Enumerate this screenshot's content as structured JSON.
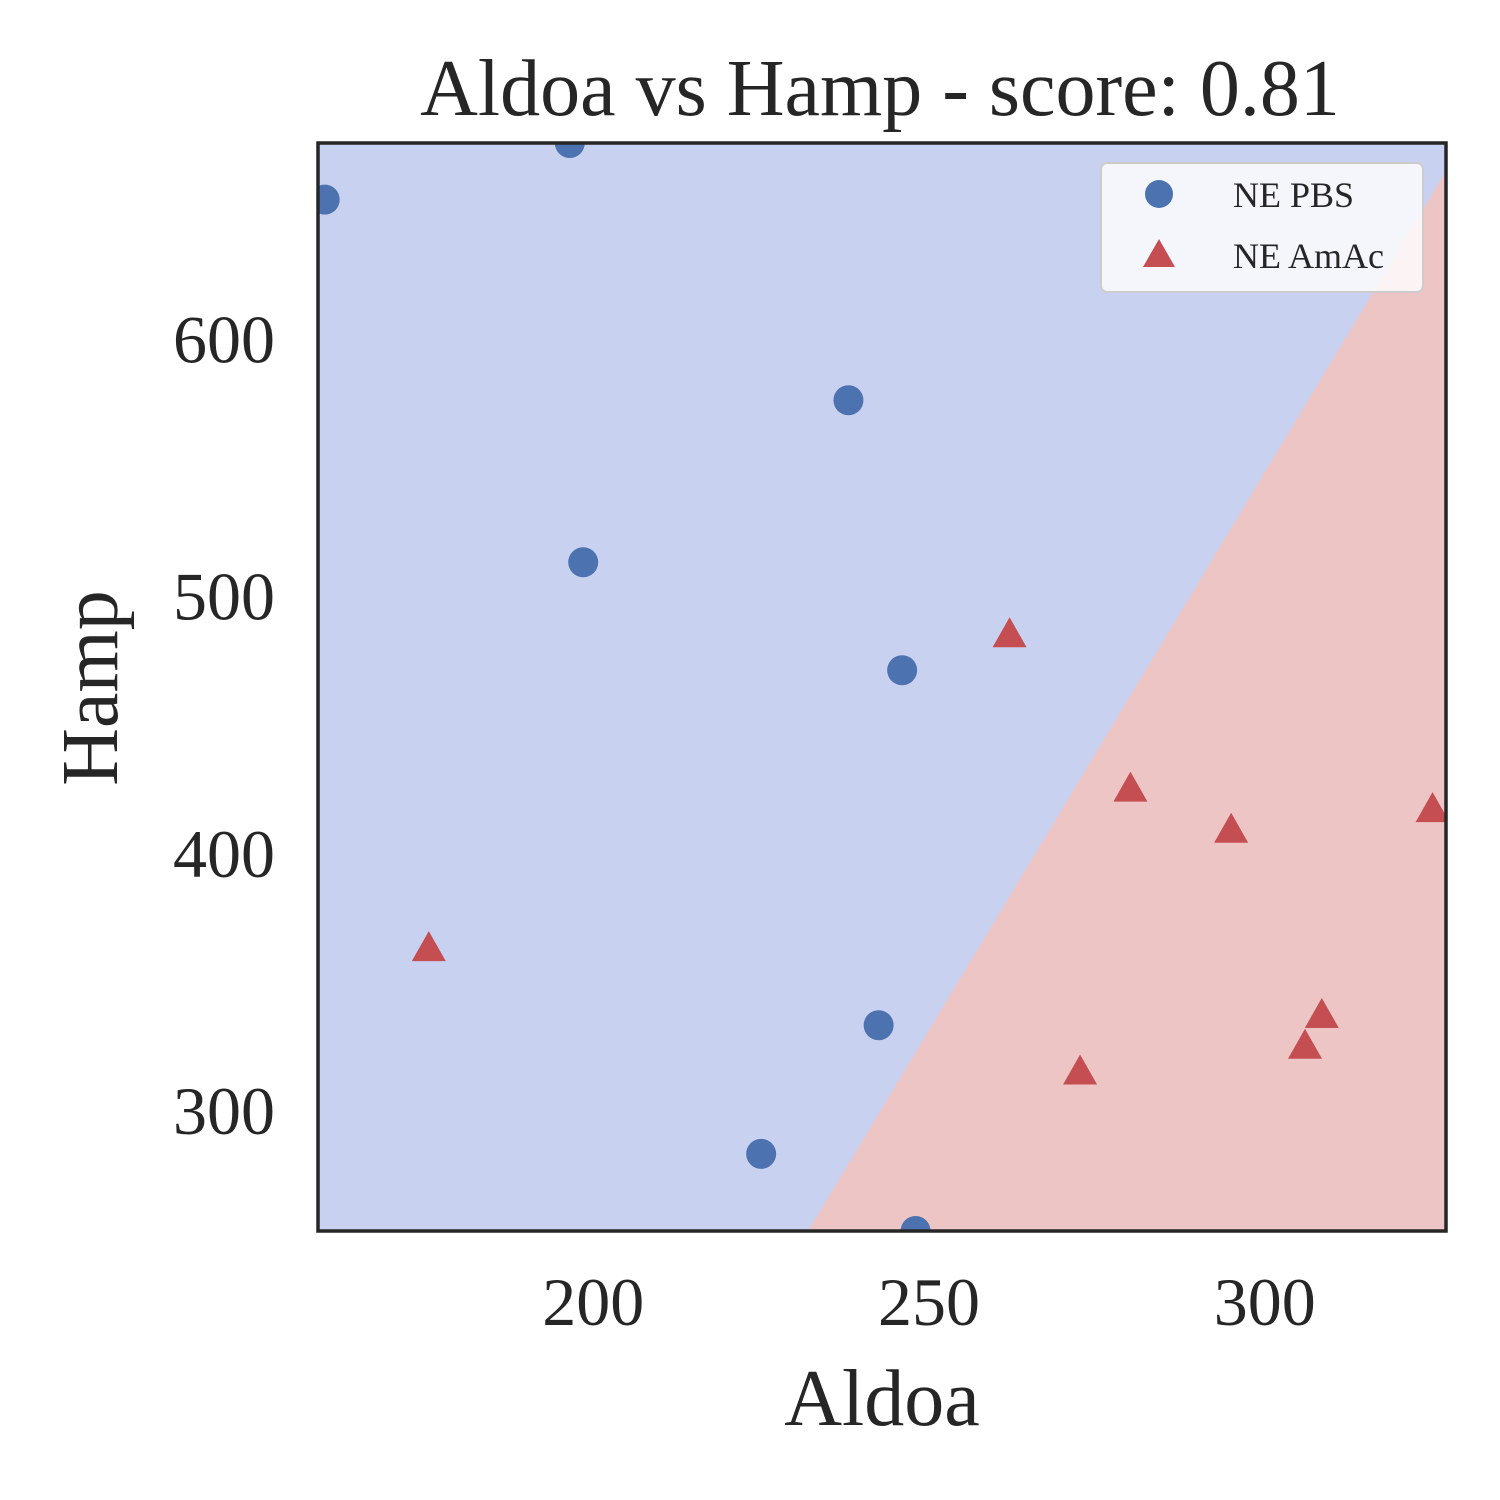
{
  "chart_data": {
    "type": "scatter",
    "title": "Aldoa vs Hamp - score: 0.81",
    "xlabel": "Aldoa",
    "ylabel": "Hamp",
    "xlim": [
      159,
      327
    ],
    "ylim": [
      253,
      676
    ],
    "xticks": [
      200,
      250,
      300
    ],
    "yticks": [
      300,
      400,
      500,
      600
    ],
    "grid": false,
    "legend_position": "top-right",
    "decision_regions": {
      "boundary_line": [
        [
          232,
          253
        ],
        [
          327,
          665
        ]
      ],
      "upper_left_class": "NE PBS",
      "lower_right_class": "NE AmAc",
      "colors": {
        "NE PBS": "#c9d1f1",
        "NE AmAc": "#eec5c5"
      }
    },
    "series": [
      {
        "name": "NE PBS",
        "marker": "circle",
        "color": "#4c72b0",
        "x": [
          160,
          196.5,
          198.5,
          238,
          246,
          242.5,
          225,
          248
        ],
        "y": [
          654,
          676,
          513,
          576,
          471,
          333,
          283,
          253
        ]
      },
      {
        "name": "NE AmAc",
        "marker": "triangle",
        "color": "#c44e52",
        "x": [
          175.5,
          262,
          272.5,
          280,
          295,
          306,
          308.5,
          325
        ],
        "y": [
          363,
          485,
          315,
          425,
          409,
          325,
          337,
          417
        ]
      }
    ]
  }
}
